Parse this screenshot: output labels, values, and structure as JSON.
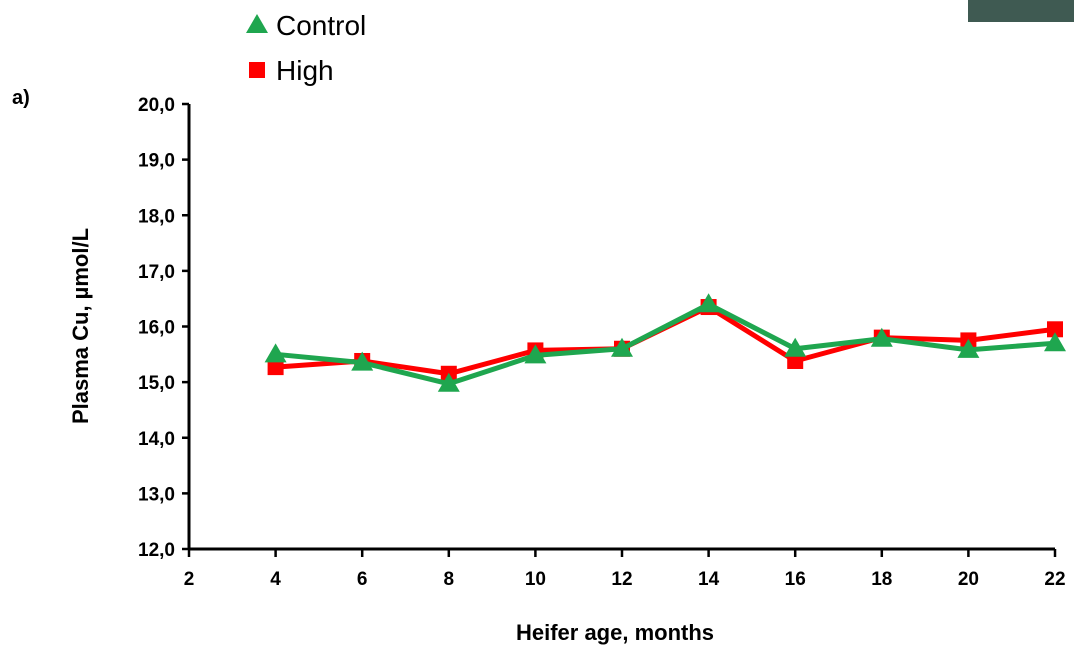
{
  "chart_data": {
    "type": "line",
    "panel_label": "a)",
    "x_label": "Heifer age, months",
    "y_label": "Plasma Cu, µmol/L",
    "x": [
      4,
      6,
      8,
      10,
      12,
      14,
      16,
      18,
      20,
      22
    ],
    "series": [
      {
        "name": "High",
        "color": "#ff0000",
        "marker": "square",
        "values": [
          15.27,
          15.38,
          15.15,
          15.57,
          15.6,
          16.35,
          15.38,
          15.8,
          15.75,
          15.95
        ]
      },
      {
        "name": "Control",
        "color": "#1fa64f",
        "marker": "triangle",
        "values": [
          15.5,
          15.35,
          14.97,
          15.48,
          15.6,
          16.4,
          15.6,
          15.78,
          15.58,
          15.7
        ]
      }
    ],
    "xlim": [
      2,
      22
    ],
    "xticks": [
      2,
      4,
      6,
      8,
      10,
      12,
      14,
      16,
      18,
      20,
      22
    ],
    "ylim": [
      12,
      20
    ],
    "yticks": [
      {
        "value": 12,
        "label": "12,0"
      },
      {
        "value": 13,
        "label": "13,0"
      },
      {
        "value": 14,
        "label": "14,0"
      },
      {
        "value": 15,
        "label": "15,0"
      },
      {
        "value": 16,
        "label": "16,0"
      },
      {
        "value": 17,
        "label": "17,0"
      },
      {
        "value": 18,
        "label": "18,0"
      },
      {
        "value": 19,
        "label": "19,0"
      },
      {
        "value": 20,
        "label": "20,0"
      }
    ],
    "legend_order": [
      "Control",
      "High"
    ]
  }
}
